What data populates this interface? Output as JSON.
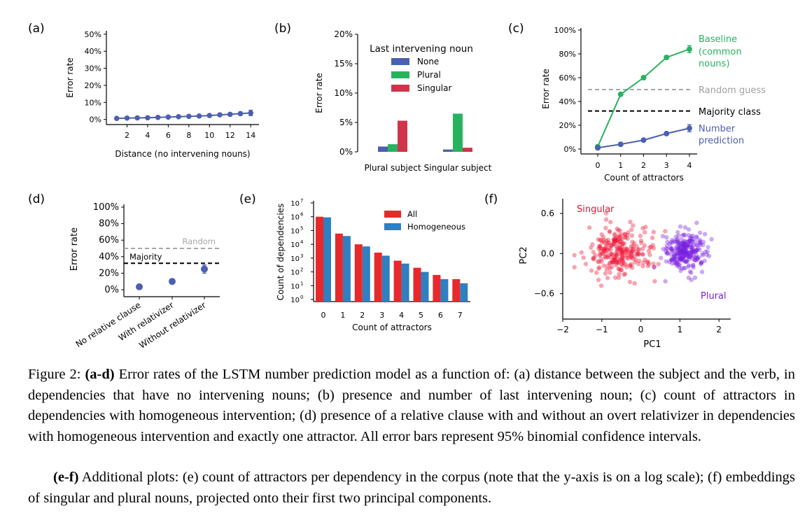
{
  "panels": {
    "a": {
      "label": "(a)",
      "chart_data": {
        "type": "line",
        "xlabel": "Distance (no intervening nouns)",
        "ylabel": "Error rate",
        "xlim": [
          0,
          14.8
        ],
        "ylim": [
          -3,
          52
        ],
        "xticks": [
          "2",
          "4",
          "6",
          "8",
          "10",
          "12",
          "14"
        ],
        "xtick_values": [
          2,
          4,
          6,
          8,
          10,
          12,
          14
        ],
        "yticks": [
          "0%",
          "10%",
          "20%",
          "30%",
          "40%",
          "50%"
        ],
        "ytick_values": [
          0,
          10,
          20,
          30,
          40,
          50
        ],
        "series": [
          {
            "color": "#4c5fb0",
            "x": [
              1,
              2,
              3,
              4,
              5,
              6,
              7,
              8,
              9,
              10,
              11,
              12,
              13,
              14
            ],
            "y": [
              0.6,
              0.8,
              0.9,
              1.0,
              1.2,
              1.4,
              1.6,
              1.8,
              2.0,
              2.3,
              2.7,
              3.0,
              3.4,
              3.8
            ],
            "err": [
              0.2,
              0.2,
              0.2,
              0.2,
              0.3,
              0.3,
              0.3,
              0.4,
              0.4,
              0.5,
              0.6,
              0.8,
              1.0,
              1.6
            ]
          }
        ]
      }
    },
    "b": {
      "label": "(b)",
      "chart_data": {
        "type": "bar",
        "ylabel": "Error rate",
        "categories": [
          "Plural subject",
          "Singular subject"
        ],
        "ylim": [
          0,
          20
        ],
        "yticks": [
          "0%",
          "5%",
          "10%",
          "15%",
          "20%"
        ],
        "ytick_values": [
          0,
          5,
          10,
          15,
          20
        ],
        "legend_title": "Last intervening noun",
        "legend_position": "top-right",
        "series": [
          {
            "name": "None",
            "color": "#4c5fb0",
            "values": [
              0.9,
              0.4
            ]
          },
          {
            "name": "Plural",
            "color": "#27b35e",
            "values": [
              1.3,
              6.5
            ]
          },
          {
            "name": "Singular",
            "color": "#d0344a",
            "values": [
              5.3,
              0.7
            ]
          }
        ]
      }
    },
    "c": {
      "label": "(c)",
      "chart_data": {
        "type": "line",
        "xlabel": "Count of attractors",
        "ylabel": "Error rate",
        "xlim": [
          -0.3,
          4.3
        ],
        "ylim": [
          -2,
          102
        ],
        "xticks": [
          "0",
          "1",
          "2",
          "3",
          "4"
        ],
        "xtick_values": [
          0,
          1,
          2,
          3,
          4
        ],
        "yticks": [
          "0%",
          "20%",
          "40%",
          "60%",
          "80%",
          "100%"
        ],
        "ytick_values": [
          0,
          20,
          40,
          60,
          80,
          100
        ],
        "series": [
          {
            "name": "Baseline (common nouns)",
            "name_lines": [
              "Baseline",
              "(common",
              " nouns)"
            ],
            "color": "#27b35e",
            "x": [
              0,
              1,
              2,
              3,
              4
            ],
            "y": [
              2,
              46,
              60,
              77,
              84
            ],
            "err": [
              0.5,
              1,
              1.2,
              1.5,
              3
            ]
          },
          {
            "name": "Number prediction",
            "name_lines": [
              "Number",
              "prediction"
            ],
            "color": "#4c5fb0",
            "x": [
              0,
              1,
              2,
              3,
              4
            ],
            "y": [
              1,
              4,
              7.5,
              13,
              17.5
            ],
            "err": [
              0.2,
              0.4,
              0.6,
              1.2,
              3
            ]
          }
        ],
        "reference_lines": [
          {
            "name": "Random guess",
            "y": 50,
            "color": "#a8a8a8"
          },
          {
            "name": "Majority class",
            "y": 32,
            "color": "#000000"
          }
        ]
      }
    },
    "d": {
      "label": "(d)",
      "chart_data": {
        "type": "scatter",
        "ylabel": "Error rate",
        "categories": [
          "No relative clause",
          "With relativizer",
          "Without relativizer"
        ],
        "ylim": [
          -3,
          103
        ],
        "yticks": [
          "0%",
          "20%",
          "40%",
          "60%",
          "80%",
          "100%"
        ],
        "ytick_values": [
          0,
          20,
          40,
          60,
          80,
          100
        ],
        "values": [
          3.5,
          10,
          25
        ],
        "err": [
          0.5,
          1,
          5
        ],
        "color": "#4c5fb0",
        "reference_lines": [
          {
            "name": "Random",
            "y": 50,
            "color": "#a8a8a8"
          },
          {
            "name": "Majority",
            "y": 32,
            "color": "#000000"
          }
        ]
      }
    },
    "e": {
      "label": "(e)",
      "chart_data": {
        "type": "bar",
        "xlabel": "Count of attractors",
        "ylabel": "Count of dependencies",
        "log_scale_y": true,
        "categories": [
          "0",
          "1",
          "2",
          "3",
          "4",
          "5",
          "6",
          "7"
        ],
        "ylim": [
          1,
          10000000
        ],
        "yticks": [
          "10",
          "10",
          "10",
          "10",
          "10",
          "10",
          "10",
          "10"
        ],
        "ytick_exponents": [
          "0",
          "1",
          "2",
          "3",
          "4",
          "5",
          "6",
          "7"
        ],
        "ytick_values": [
          1,
          10,
          100,
          1000,
          10000,
          100000,
          1000000,
          10000000
        ],
        "legend_position": "top-right",
        "series": [
          {
            "name": "All",
            "color": "#e8292b",
            "values": [
              1000000,
              60000,
              10000,
              2500,
              650,
              200,
              60,
              30
            ]
          },
          {
            "name": "Homogeneous",
            "color": "#2f7fc1",
            "values": [
              900000,
              40000,
              7000,
              1500,
              400,
              100,
              30,
              15
            ]
          }
        ]
      }
    },
    "f": {
      "label": "(f)",
      "chart_data": {
        "type": "scatter",
        "xlabel": "PC1",
        "ylabel": "PC2",
        "xlim": [
          -2.0,
          2.3
        ],
        "ylim": [
          -0.98,
          0.82
        ],
        "xticks": [
          "−2",
          "−1",
          "0",
          "1",
          "2"
        ],
        "xtick_values": [
          -2,
          -1,
          0,
          1,
          2
        ],
        "yticks": [
          "−0.6",
          "0.0",
          "0.6"
        ],
        "ytick_values": [
          -0.6,
          0.0,
          0.6
        ],
        "series": [
          {
            "name": "Singular",
            "color": "#ee1133",
            "center": [
              -0.55,
              0.0
            ],
            "spread": [
              0.42,
              0.2
            ],
            "count": 260
          },
          {
            "name": "Plural",
            "color": "#7a1fe0",
            "center": [
              1.15,
              0.02
            ],
            "spread": [
              0.28,
              0.15
            ],
            "count": 260
          }
        ]
      }
    }
  },
  "caption": {
    "fig_label": "Figure 2:",
    "part1_bold": "(a-d)",
    "part1_text": "Error rates of the LSTM number prediction model as a function of: (a) distance between the subject and the verb, in dependencies that have no intervening nouns; (b) presence and number of last intervening noun; (c) count of attractors in dependencies with homogeneous intervention; (d) presence of a relative clause with and without an overt relativizer in dependencies with homogeneous intervention and exactly one attractor. All error bars represent 95% binomial confidence intervals.",
    "part2_bold": "(e-f)",
    "part2_text": "Additional plots: (e) count of attractors per dependency in the corpus (note that the y-axis is on a log scale); (f) embeddings of singular and plural nouns, projected onto their first two principal components."
  }
}
